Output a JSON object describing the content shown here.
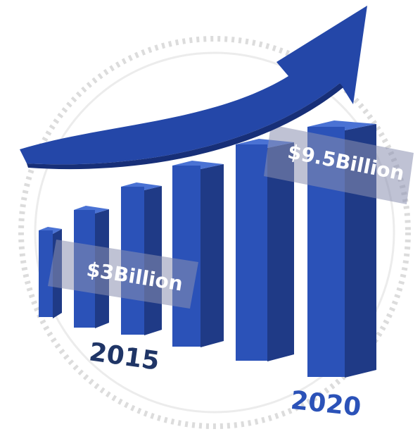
{
  "labels": {
    "start_value": "$3Billion",
    "end_value": "$9.5Billion",
    "start_year": "2015",
    "end_year": "2020"
  }
}
